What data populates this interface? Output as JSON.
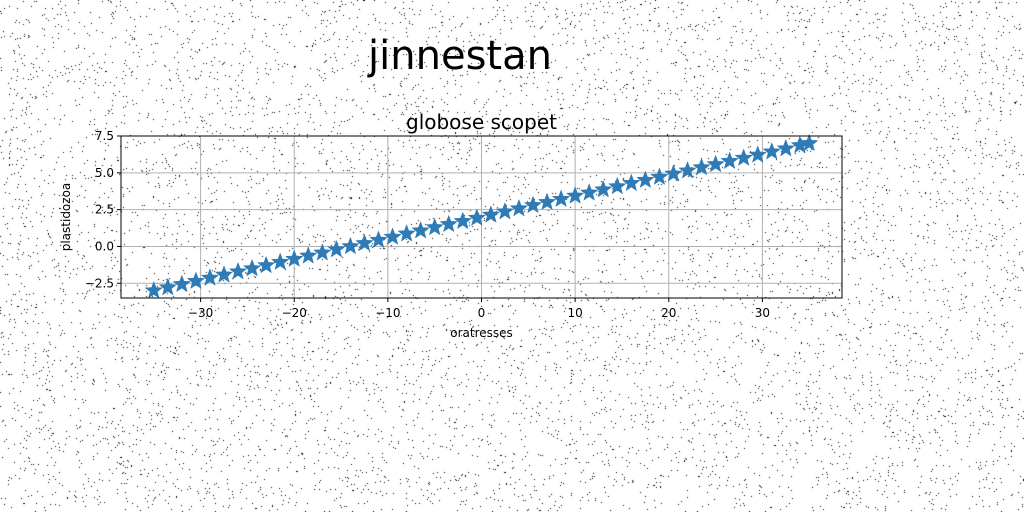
{
  "figure": {
    "title": "jinnestan"
  },
  "colors": {
    "series": "#2e7bb6",
    "grid": "#b0b0b0",
    "noise": "#000000"
  },
  "chart_data": {
    "type": "scatter",
    "title": "globose scopet",
    "xlabel": "oratresses",
    "ylabel": "plastidozoa",
    "marker": "star",
    "grid": true,
    "xlim": [
      -38.5,
      38.5
    ],
    "ylim": [
      -3.5,
      7.5
    ],
    "x_ticks": [
      -30,
      -20,
      -10,
      0,
      10,
      20,
      30
    ],
    "x_tick_labels": [
      "−30",
      "−20",
      "−10",
      "0",
      "10",
      "20",
      "30"
    ],
    "y_ticks": [
      -2.5,
      0.0,
      2.5,
      5.0,
      7.5
    ],
    "y_tick_labels": [
      "−2.5",
      "0.0",
      "2.5",
      "5.0",
      "7.5"
    ],
    "series": [
      {
        "x": [
          -35,
          -33.5,
          -32,
          -30.5,
          -29,
          -27.5,
          -26,
          -24.5,
          -23,
          -21.5,
          -20,
          -18.5,
          -17,
          -15.5,
          -14,
          -12.5,
          -11,
          -9.5,
          -8,
          -6.5,
          -5,
          -3.5,
          -2,
          -0.5,
          1,
          2.5,
          4,
          5.5,
          7,
          8.5,
          10,
          11.5,
          13,
          14.5,
          16,
          17.5,
          19,
          20.5,
          22,
          23.5,
          25,
          26.5,
          28,
          29.5,
          31,
          32.5,
          34,
          35
        ],
        "y": [
          -3.0,
          -2.79,
          -2.57,
          -2.36,
          -2.14,
          -1.93,
          -1.71,
          -1.5,
          -1.29,
          -1.07,
          -0.86,
          -0.64,
          -0.43,
          -0.21,
          0.0,
          0.21,
          0.43,
          0.64,
          0.86,
          1.07,
          1.29,
          1.5,
          1.71,
          1.93,
          2.14,
          2.36,
          2.57,
          2.79,
          3.0,
          3.21,
          3.43,
          3.64,
          3.86,
          4.07,
          4.29,
          4.5,
          4.71,
          4.93,
          5.14,
          5.36,
          5.57,
          5.79,
          6.0,
          6.21,
          6.43,
          6.64,
          6.86,
          7.0
        ]
      }
    ]
  }
}
